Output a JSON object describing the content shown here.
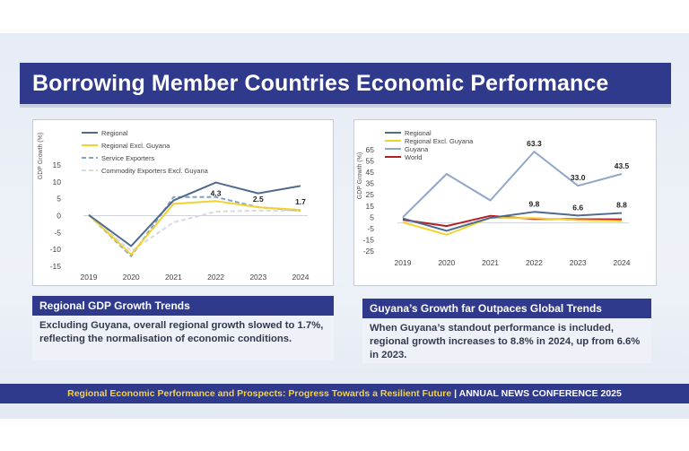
{
  "title": "Borrowing Member Countries Economic Performance",
  "colors": {
    "accent": "#2f3a8c",
    "regional": "#4f6a8f",
    "excl_guyana": "#f2d22e",
    "service": "#7ea2c9",
    "commodity": "#d6d9df",
    "guyana": "#8ea6c8",
    "world": "#b41f24"
  },
  "chart_data": [
    {
      "type": "line",
      "title": "",
      "xlabel": "",
      "ylabel": "GDP Growth (%)",
      "x": [
        "2019",
        "2020",
        "2021",
        "2022",
        "2023",
        "2024"
      ],
      "ylim": [
        -15,
        15
      ],
      "yticks": [
        -15,
        -10,
        -5,
        0,
        5,
        10,
        15
      ],
      "legend_position": "top-left",
      "series": [
        {
          "name": "Regional",
          "values": [
            0.2,
            -9,
            4.5,
            9.8,
            6.6,
            8.8
          ],
          "color": "#4f6a8f",
          "style": "solid"
        },
        {
          "name": "Regional Excl. Guyana",
          "values": [
            0.2,
            -11.5,
            3.5,
            4.3,
            2.5,
            1.7
          ],
          "color": "#f2d22e",
          "style": "solid"
        },
        {
          "name": "Service Exporters",
          "values": [
            0.2,
            -12,
            5.5,
            5.5,
            2.5,
            1.5
          ],
          "color": "#7ea2c9",
          "style": "dashed"
        },
        {
          "name": "Commodity Exporters Excl. Guyana",
          "values": [
            0.2,
            -10.5,
            -2,
            1.2,
            1.5,
            1.5
          ],
          "color": "#d6d9df",
          "style": "dashed"
        }
      ],
      "annotations": [
        {
          "x": "2022",
          "y": 4.3,
          "label": "4.3"
        },
        {
          "x": "2023",
          "y": 2.5,
          "label": "2.5"
        },
        {
          "x": "2024",
          "y": 1.7,
          "label": "1.7"
        }
      ]
    },
    {
      "type": "line",
      "title": "",
      "xlabel": "",
      "ylabel": "GDP Growth (%)",
      "x": [
        "2019",
        "2020",
        "2021",
        "2022",
        "2023",
        "2024"
      ],
      "ylim": [
        -25,
        65
      ],
      "yticks": [
        -25,
        -15,
        -5,
        5,
        15,
        25,
        35,
        45,
        55,
        65
      ],
      "legend_position": "top-left",
      "series": [
        {
          "name": "Regional",
          "values": [
            4,
            -7,
            4.5,
            9.8,
            6.6,
            8.8
          ],
          "color": "#4f6a8f",
          "style": "solid"
        },
        {
          "name": "Regional Excl. Guyana",
          "values": [
            0.5,
            -10.5,
            4.5,
            4.3,
            2.5,
            1.7
          ],
          "color": "#f2d22e",
          "style": "solid"
        },
        {
          "name": "Guyana",
          "values": [
            5,
            43.5,
            20,
            63.3,
            33.0,
            43.5
          ],
          "color": "#8ea6c8",
          "style": "solid"
        },
        {
          "name": "World",
          "values": [
            2.8,
            -2.8,
            6.3,
            3.5,
            3.3,
            3.2
          ],
          "color": "#b41f24",
          "style": "solid"
        }
      ],
      "annotations": [
        {
          "x": "2022",
          "y": 63.3,
          "label": "63.3"
        },
        {
          "x": "2023",
          "y": 33.0,
          "label": "33.0"
        },
        {
          "x": "2024",
          "y": 43.5,
          "label": "43.5"
        },
        {
          "x": "2022",
          "y": 9.8,
          "label": "9.8"
        },
        {
          "x": "2023",
          "y": 6.6,
          "label": "6.6"
        },
        {
          "x": "2024",
          "y": 8.8,
          "label": "8.8"
        }
      ]
    }
  ],
  "captions": {
    "left": {
      "heading": "Regional GDP Growth Trends",
      "text": "Excluding Guyana, overall regional growth slowed to 1.7%, reflecting the normalisation of economic conditions."
    },
    "right": {
      "heading": "Guyana’s Growth far Outpaces Global Trends",
      "text": "When Guyana’s standout performance is included, regional growth increases to 8.8% in 2024, up from 6.6% in 2023."
    }
  },
  "footer": {
    "tagline": "Regional Economic Performance and Prospects: Progress Towards a Resilient Future",
    "separator": " | ",
    "event": "ANNUAL NEWS CONFERENCE 2025"
  }
}
